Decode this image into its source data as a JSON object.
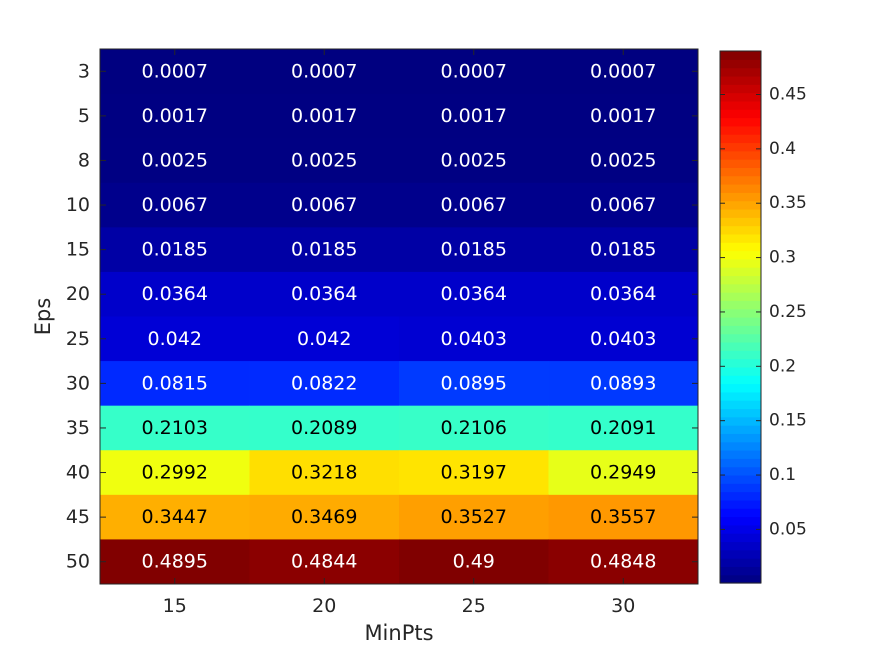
{
  "chart_data": {
    "type": "heatmap",
    "title": "",
    "xlabel": "MinPts",
    "ylabel": "Eps",
    "x": [
      15,
      20,
      25,
      30
    ],
    "y": [
      3,
      5,
      8,
      10,
      15,
      20,
      25,
      30,
      35,
      40,
      45,
      50
    ],
    "values": [
      [
        0.0007,
        0.0007,
        0.0007,
        0.0007
      ],
      [
        0.0017,
        0.0017,
        0.0017,
        0.0017
      ],
      [
        0.0025,
        0.0025,
        0.0025,
        0.0025
      ],
      [
        0.0067,
        0.0067,
        0.0067,
        0.0067
      ],
      [
        0.0185,
        0.0185,
        0.0185,
        0.0185
      ],
      [
        0.0364,
        0.0364,
        0.0364,
        0.0364
      ],
      [
        0.042,
        0.042,
        0.0403,
        0.0403
      ],
      [
        0.0815,
        0.0822,
        0.0895,
        0.0893
      ],
      [
        0.2103,
        0.2089,
        0.2106,
        0.2091
      ],
      [
        0.2992,
        0.3218,
        0.3197,
        0.2949
      ],
      [
        0.3447,
        0.3469,
        0.3527,
        0.3557
      ],
      [
        0.4895,
        0.4844,
        0.49,
        0.4848
      ]
    ],
    "colormap": "jet",
    "clim": [
      0.0007,
      0.49
    ],
    "colorbar": {
      "position": "right",
      "ticks": [
        0.05,
        0.1,
        0.15,
        0.2,
        0.25,
        0.3,
        0.35,
        0.4,
        0.45
      ]
    },
    "grid": false
  }
}
